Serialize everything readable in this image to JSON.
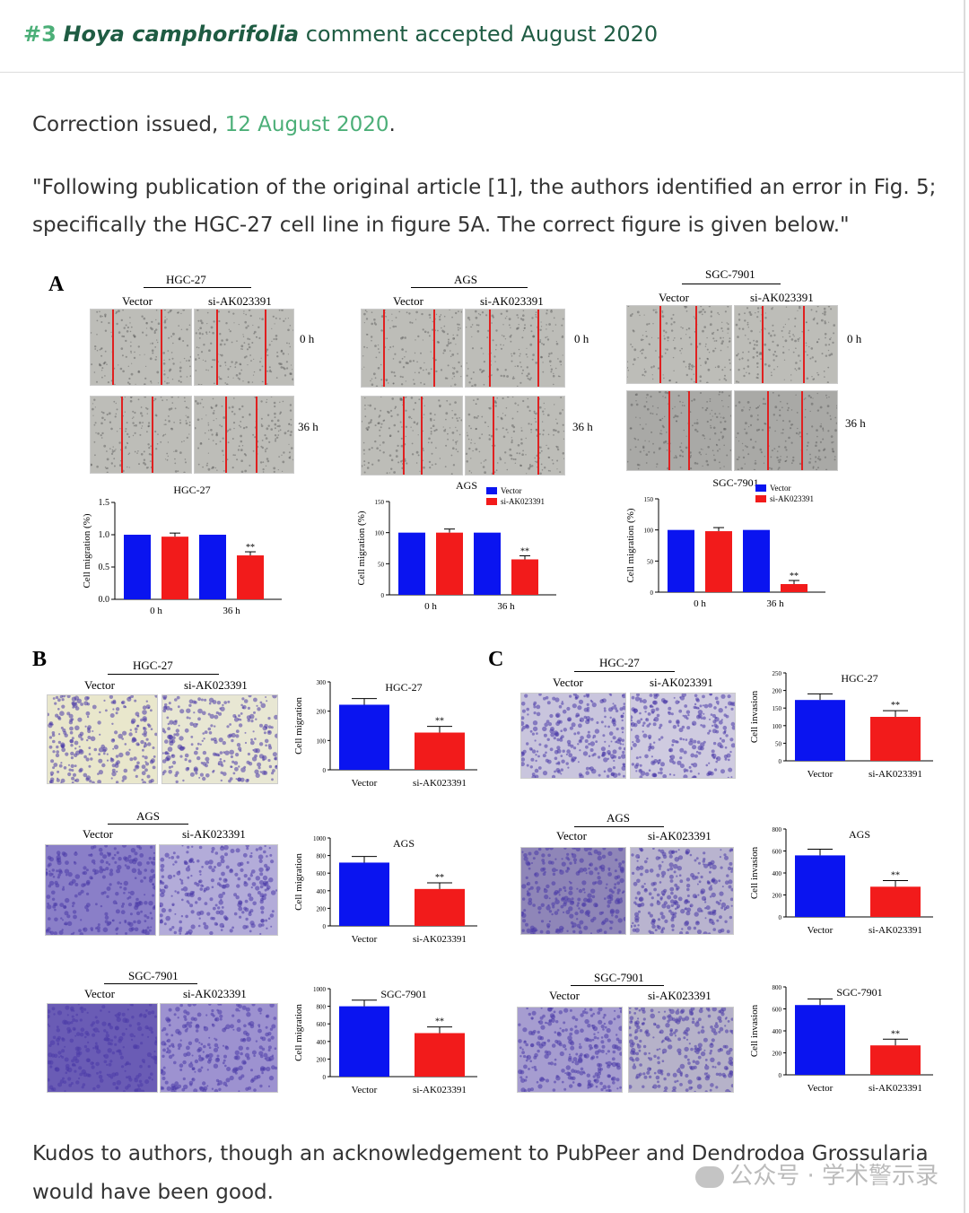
{
  "header": {
    "number": "#3",
    "species": "Hoya camphorifolia",
    "rest": "comment accepted August 2020"
  },
  "correction": {
    "prefix": "Correction issued,",
    "date": "12 August 2020",
    "suffix": "."
  },
  "quote": {
    "line1": "\"Following publication of the original article [1], the authors identified an error in Fig. 5;",
    "line2": "specifically the HGC-27 cell line in figure 5A. The correct figure is given below.\""
  },
  "figure": {
    "labels": {
      "A": "A",
      "B": "B",
      "C": "C"
    },
    "lines": [
      "HGC-27",
      "AGS",
      "SGC-7901"
    ],
    "vector": "Vector",
    "si": "si-AK023391",
    "time0": "0 h",
    "time36": "36 h",
    "sig": "**",
    "migration_pct": "Cell migration (%)",
    "migration": "Cell migration",
    "invasion": "Cell invasion"
  },
  "chart_data": [
    {
      "type": "bar",
      "panel": "A",
      "title": "HGC-27",
      "ylabel": "Cell migration (%)",
      "categories": [
        "0 h",
        "36 h"
      ],
      "ylim": [
        0,
        1.5
      ],
      "yticks": [
        0.0,
        0.5,
        1.0,
        1.5
      ],
      "series": [
        {
          "name": "Vector",
          "values": [
            1.0,
            1.0
          ]
        },
        {
          "name": "si-AK023391",
          "values": [
            0.97,
            0.68
          ]
        }
      ]
    },
    {
      "type": "bar",
      "panel": "A",
      "title": "AGS",
      "ylabel": "Cell migration (%)",
      "categories": [
        "0 h",
        "36 h"
      ],
      "ylim": [
        0,
        150
      ],
      "yticks": [
        0,
        50,
        100,
        150
      ],
      "series": [
        {
          "name": "Vector",
          "values": [
            100,
            100
          ]
        },
        {
          "name": "si-AK023391",
          "values": [
            100,
            57
          ]
        }
      ]
    },
    {
      "type": "bar",
      "panel": "A",
      "title": "SGC-7901",
      "ylabel": "Cell migration (%)",
      "categories": [
        "0 h",
        "36 h"
      ],
      "ylim": [
        0,
        150
      ],
      "yticks": [
        0,
        50,
        100,
        150
      ],
      "series": [
        {
          "name": "Vector",
          "values": [
            100,
            100
          ]
        },
        {
          "name": "si-AK023391",
          "values": [
            98,
            13
          ]
        }
      ]
    },
    {
      "type": "bar",
      "panel": "B",
      "title": "HGC-27",
      "ylabel": "Cell migration",
      "categories": [
        "Vector",
        "si-AK023391"
      ],
      "values": [
        222,
        127
      ],
      "ylim": [
        0,
        300
      ],
      "yticks": [
        0,
        100,
        200,
        300
      ]
    },
    {
      "type": "bar",
      "panel": "B",
      "title": "AGS",
      "ylabel": "Cell migration",
      "categories": [
        "Vector",
        "si-AK023391"
      ],
      "values": [
        720,
        420
      ],
      "ylim": [
        0,
        1000
      ],
      "yticks": [
        0,
        200,
        400,
        600,
        800,
        1000
      ]
    },
    {
      "type": "bar",
      "panel": "B",
      "title": "SGC-7901",
      "ylabel": "Cell migration",
      "categories": [
        "Vector",
        "si-AK023391"
      ],
      "values": [
        800,
        495
      ],
      "ylim": [
        0,
        1000
      ],
      "yticks": [
        0,
        200,
        400,
        600,
        800,
        1000
      ]
    },
    {
      "type": "bar",
      "panel": "C",
      "title": "HGC-27",
      "ylabel": "Cell invasion",
      "categories": [
        "Vector",
        "si-AK023391"
      ],
      "values": [
        173,
        125
      ],
      "ylim": [
        0,
        250
      ],
      "yticks": [
        0,
        50,
        100,
        150,
        200,
        250
      ]
    },
    {
      "type": "bar",
      "panel": "C",
      "title": "AGS",
      "ylabel": "Cell invasion",
      "categories": [
        "Vector",
        "si-AK023391"
      ],
      "values": [
        560,
        275
      ],
      "ylim": [
        0,
        800
      ],
      "yticks": [
        0,
        200,
        400,
        600,
        800
      ]
    },
    {
      "type": "bar",
      "panel": "C",
      "title": "SGC-7901",
      "ylabel": "Cell invasion",
      "categories": [
        "Vector",
        "si-AK023391"
      ],
      "values": [
        635,
        268
      ],
      "ylim": [
        0,
        800
      ],
      "yticks": [
        0,
        200,
        400,
        600,
        800
      ]
    }
  ],
  "kudos": {
    "line1": "Kudos to authors, though an acknowledgement to PubPeer and Dendrodoa Grossularia",
    "line2": "would have been good."
  },
  "watermark": "公众号 · 学术警示录",
  "colors": {
    "blue": "#0a14f0",
    "red": "#f21b1b",
    "link": "#4caf78",
    "heading": "#1f5c43"
  }
}
